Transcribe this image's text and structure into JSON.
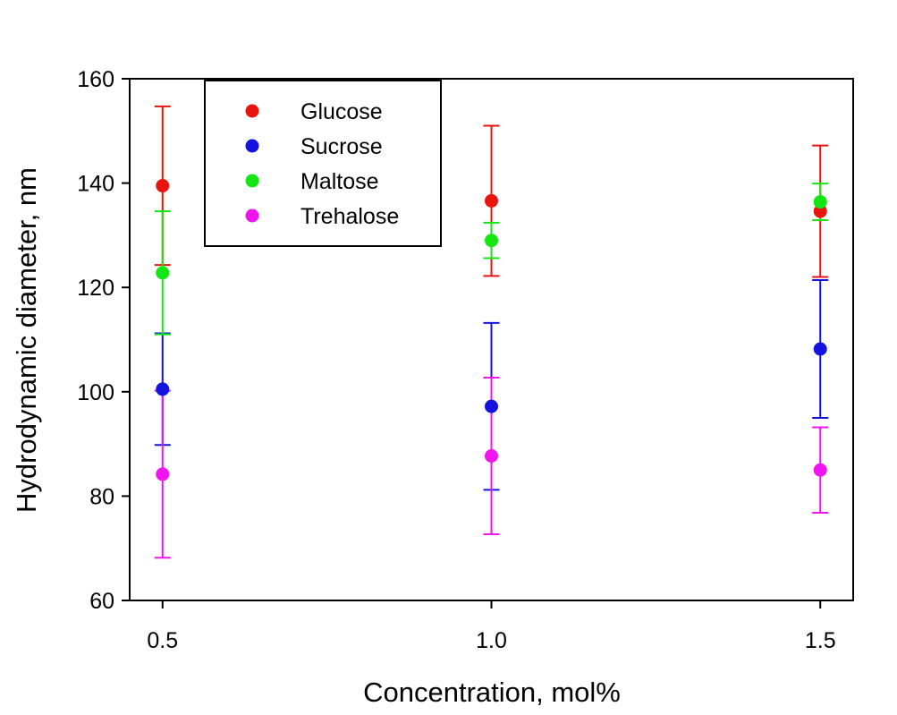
{
  "chart_data": {
    "type": "scatter",
    "title": "",
    "xlabel": "Concentration, mol%",
    "ylabel": "Hydrodynamic diameter, nm",
    "x": [
      0.5,
      1.0,
      1.5
    ],
    "x_tick_labels": [
      "0.5",
      "1.0",
      "1.5"
    ],
    "xlim": [
      0.45,
      1.55
    ],
    "ylim": [
      60,
      160
    ],
    "y_ticks": [
      60,
      80,
      100,
      120,
      140,
      160
    ],
    "y_tick_labels": [
      "60",
      "80",
      "100",
      "120",
      "140",
      "160"
    ],
    "grid": false,
    "legend_position": "top-left",
    "series": [
      {
        "name": "Glucose",
        "color": "#e8140f",
        "values": [
          139.5,
          136.6,
          134.6
        ],
        "errors": [
          15.2,
          14.4,
          12.6
        ]
      },
      {
        "name": "Sucrose",
        "color": "#1313e0",
        "values": [
          100.5,
          97.2,
          108.2
        ],
        "errors": [
          10.7,
          16.0,
          13.2
        ]
      },
      {
        "name": "Maltose",
        "color": "#14e614",
        "values": [
          122.8,
          129.0,
          136.4
        ],
        "errors": [
          11.8,
          3.4,
          3.5
        ]
      },
      {
        "name": "Trehalose",
        "color": "#f014f0",
        "values": [
          84.2,
          87.7,
          85.0
        ],
        "errors": [
          16.0,
          15.0,
          8.2
        ]
      }
    ]
  }
}
